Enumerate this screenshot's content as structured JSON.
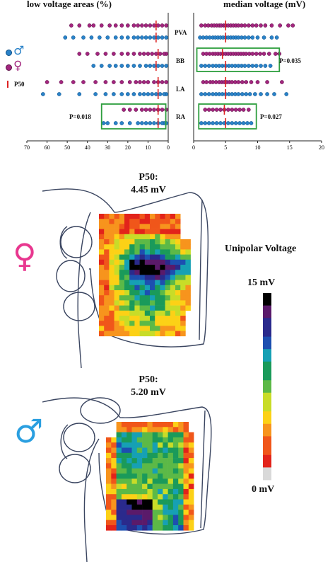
{
  "colors": {
    "female": "#a2267e",
    "male": "#2a82c8",
    "p50_line": "#dd2222",
    "significance_box": "#2e9e3e",
    "female_symbol": "#e8378f",
    "male_symbol": "#2a9fe0"
  },
  "legend": {
    "female_icon": "venus-icon",
    "male_icon": "mars-icon",
    "p50_label": "P50"
  },
  "chart_data": [
    {
      "type": "scatter",
      "title": "low voltage areas (%)",
      "x_direction": "reversed",
      "xlim": [
        0,
        70
      ],
      "xticks": [
        "70",
        "60",
        "50",
        "40",
        "30",
        "20",
        "10",
        "0"
      ],
      "categories": [
        "PVA",
        "BB",
        "LA",
        "RA"
      ],
      "series": [
        {
          "name": "♀",
          "points": {
            "PVA": [
              1,
              3,
              5,
              7,
              9,
              11,
              13,
              15,
              17,
              20,
              23,
              26,
              29,
              33,
              37,
              39,
              44,
              48
            ],
            "BB": [
              1,
              2,
              4,
              6,
              8,
              10,
              12,
              14,
              17,
              20,
              23,
              27,
              31,
              35,
              40,
              44
            ],
            "LA": [
              1,
              3,
              5,
              7,
              10,
              12,
              14,
              16,
              19,
              23,
              27,
              31,
              36,
              42,
              47,
              53,
              60
            ],
            "RA": [
              1,
              3,
              5,
              7,
              9,
              11,
              13,
              16,
              19,
              22
            ]
          }
        },
        {
          "name": "♂",
          "points": {
            "PVA": [
              1,
              3,
              5,
              7,
              9,
              11,
              13,
              15,
              17,
              20,
              23,
              26,
              30,
              34,
              38,
              42,
              47,
              51
            ],
            "BB": [
              1,
              3,
              5,
              7,
              9,
              11,
              14,
              17,
              20,
              23,
              26,
              29,
              33,
              37
            ],
            "LA": [
              1,
              2,
              4,
              6,
              8,
              10,
              12,
              14,
              17,
              20,
              23,
              27,
              31,
              36,
              44,
              54,
              62
            ],
            "RA": [
              1,
              2,
              3,
              5,
              7,
              9,
              11,
              13,
              15,
              19,
              23,
              26,
              30,
              32
            ]
          }
        }
      ],
      "p50": {
        "PVA": [
          6,
          6
        ],
        "BB": [
          5,
          6
        ],
        "LA": [
          5,
          5
        ],
        "RA": [
          5,
          5
        ]
      },
      "annotations": [
        {
          "text": "P=0.018",
          "region": "RA"
        }
      ]
    },
    {
      "type": "scatter",
      "title": "median voltage (mV)",
      "xlim": [
        0,
        20
      ],
      "xticks": [
        "0",
        "5",
        "10",
        "15",
        "20"
      ],
      "categories": [
        "PVA",
        "BB",
        "LA",
        "RA"
      ],
      "series": [
        {
          "name": "♀",
          "points": {
            "PVA": [
              1.2,
              1.8,
              2.3,
              2.8,
              3.2,
              3.6,
              4,
              4.3,
              4.7,
              5,
              5.4,
              5.8,
              6.2,
              6.6,
              7,
              7.5,
              8,
              8.6,
              9.2,
              9.8,
              10.5,
              11.2,
              12.2,
              13.5,
              14.8,
              15.5
            ],
            "BB": [
              1.5,
              2,
              2.5,
              3,
              3.4,
              3.8,
              4.2,
              4.6,
              5,
              5.4,
              5.8,
              6.2,
              6.6,
              7,
              7.4,
              7.8,
              8.2,
              8.7,
              9.2,
              9.8,
              10.4,
              11,
              11.8,
              12.8,
              13.4
            ],
            "LA": [
              1.5,
              2,
              2.6,
              3,
              3.5,
              4,
              4.4,
              4.8,
              5.2,
              5.6,
              6,
              6.5,
              7,
              7.6,
              8.2,
              9,
              10,
              11.5,
              13.8
            ],
            "RA": [
              1.8,
              2.4,
              3,
              3.6,
              4.2,
              4.8,
              5.4,
              6,
              6.6,
              7.2,
              7.8,
              8.6
            ]
          }
        },
        {
          "name": "♂",
          "points": {
            "PVA": [
              1,
              1.5,
              2,
              2.5,
              3,
              3.4,
              3.8,
              4.2,
              4.6,
              5,
              5.4,
              5.8,
              6.2,
              6.6,
              7,
              7.5,
              8,
              8.6,
              9.2,
              10,
              11,
              12.2,
              13
            ],
            "BB": [
              1.2,
              1.8,
              2.4,
              3,
              3.5,
              4,
              4.5,
              5,
              5.5,
              6,
              6.5,
              7,
              7.5,
              8,
              8.6,
              9.2,
              9.8,
              10.5,
              11.2,
              12
            ],
            "LA": [
              1.2,
              1.8,
              2.4,
              3,
              3.5,
              4,
              4.5,
              5,
              5.5,
              6,
              6.5,
              7,
              7.6,
              8.2,
              8.8,
              9.6,
              10.5,
              11.5,
              12.6,
              14.5
            ],
            "RA": [
              1.2,
              1.8,
              2.4,
              3,
              3.6,
              4.2,
              4.8,
              5.4,
              6,
              6.6,
              7.2,
              7.8,
              8.4,
              9
            ]
          }
        }
      ],
      "p50": {
        "PVA": [
          5,
          5
        ],
        "BB": [
          4.5,
          5
        ],
        "LA": [
          5,
          5
        ],
        "RA": [
          4.8,
          5
        ]
      },
      "annotations": [
        {
          "text": "P=0.035",
          "region": "BB"
        },
        {
          "text": "P=0.027",
          "region": "RA"
        }
      ]
    }
  ],
  "maps": {
    "female": {
      "p50_label": "P50:",
      "p50_value": "4.45 mV"
    },
    "male": {
      "p50_label": "P50:",
      "p50_value": "5.20 mV"
    }
  },
  "colorbar": {
    "title": "Unipolar Voltage",
    "max_label": "15 mV",
    "min_label": "0 mV",
    "range": [
      0,
      15
    ],
    "scale": [
      "#d9d9d9",
      "#e2231a",
      "#f0561a",
      "#f7941d",
      "#fcd116",
      "#c8dc28",
      "#5cb947",
      "#1a9a5a",
      "#16a0b4",
      "#1d4fb0",
      "#2a2a8c",
      "#5a1a6a",
      "#000000"
    ]
  }
}
